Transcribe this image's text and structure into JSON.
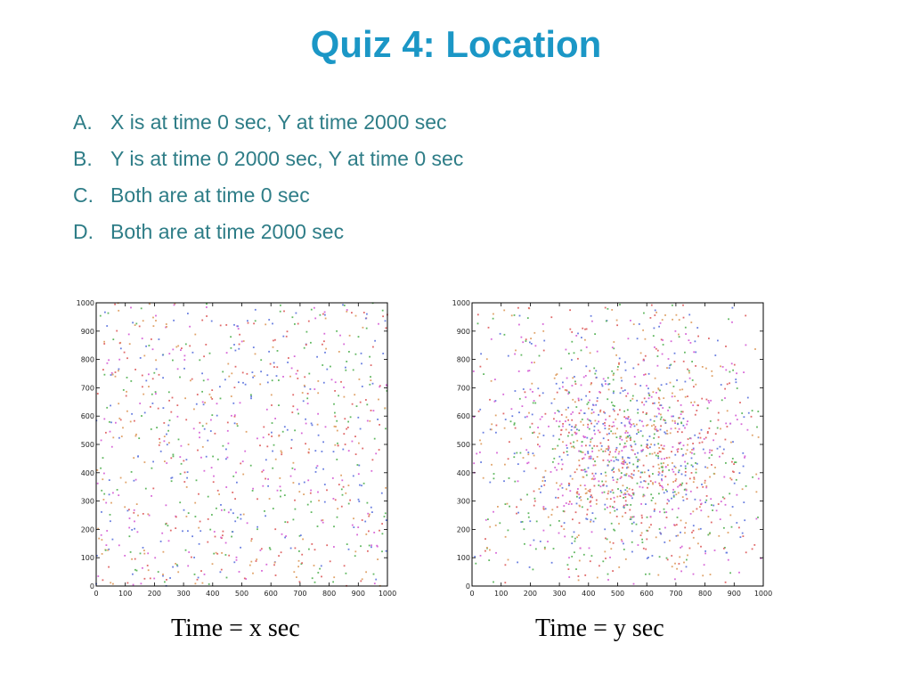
{
  "title": "Quiz 4: Location",
  "options": [
    {
      "letter": "A.",
      "text": "X is at time 0 sec, Y at time 2000 sec"
    },
    {
      "letter": "B.",
      "text": "Y is at time 0 2000 sec, Y at time 0 sec"
    },
    {
      "letter": "C.",
      "text": "Both are at time 0 sec"
    },
    {
      "letter": "D.",
      "text": "Both are at time 2000 sec"
    }
  ],
  "captions": {
    "left": "Time = x sec",
    "right": "Time = y sec"
  },
  "chart_data": [
    {
      "type": "scatter",
      "xlim": [
        0,
        1000
      ],
      "ylim": [
        0,
        1000
      ],
      "xticks": [
        0,
        100,
        200,
        300,
        400,
        500,
        600,
        700,
        800,
        900,
        1000
      ],
      "yticks": [
        0,
        100,
        200,
        300,
        400,
        500,
        600,
        700,
        800,
        900,
        1000
      ],
      "grid": false,
      "distribution": "uniform",
      "point_count": 900,
      "point_colors": [
        "#e06a6a",
        "#6a7fe0",
        "#62b862",
        "#d86ad8",
        "#e0a36a"
      ],
      "seed": 7
    },
    {
      "type": "scatter",
      "xlim": [
        0,
        1000
      ],
      "ylim": [
        0,
        1000
      ],
      "xticks": [
        0,
        100,
        200,
        300,
        400,
        500,
        600,
        700,
        800,
        900,
        1000
      ],
      "yticks": [
        0,
        100,
        200,
        300,
        400,
        500,
        600,
        700,
        800,
        900,
        1000
      ],
      "grid": false,
      "distribution": "centered",
      "center": [
        550,
        450
      ],
      "point_count": 1500,
      "point_colors": [
        "#e06a6a",
        "#6a7fe0",
        "#62b862",
        "#d86ad8",
        "#e0a36a"
      ],
      "seed": 13
    }
  ]
}
